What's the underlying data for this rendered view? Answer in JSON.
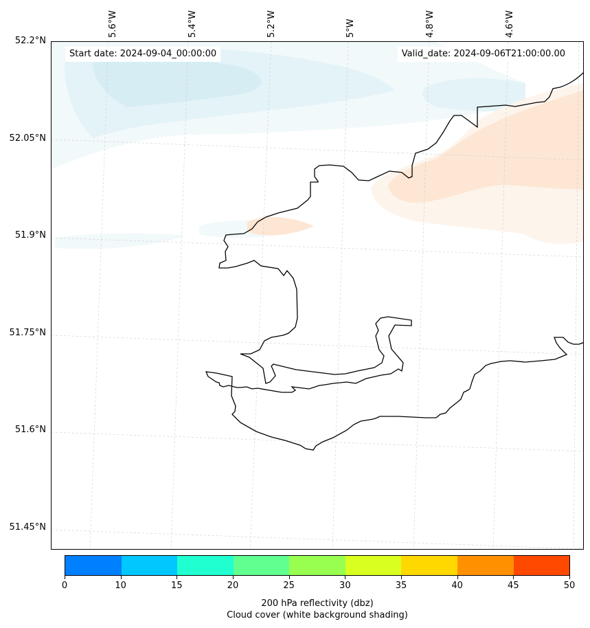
{
  "map": {
    "start_date": "Start date: 2024-09-04_00:00:00",
    "valid_date": "Valid_date: 2024-09-06T21:00:00.00",
    "longitude_labels": [
      "5.6°W",
      "5.4°W",
      "5.2°W",
      "5°W",
      "4.8°W",
      "4.6°W"
    ],
    "latitude_labels": [
      "52.2°N",
      "52.05°N",
      "51.9°N",
      "51.75°N",
      "51.6°N",
      "51.45°N"
    ]
  },
  "colorbar": {
    "ticks": [
      "0",
      "10",
      "15",
      "20",
      "25",
      "30",
      "35",
      "40",
      "45",
      "50"
    ],
    "colors": [
      "#0080ff",
      "#00c8ff",
      "#20ffd0",
      "#60ff90",
      "#98ff50",
      "#d8ff20",
      "#ffd800",
      "#ff9000",
      "#ff4800"
    ],
    "title_line1": "200 hPa reflectivity (dbz)",
    "title_line2": "Cloud cover (white background shading)"
  },
  "colors": {
    "cloud_light": "#f2f9fb",
    "cloud_mid": "#e4f3f7",
    "cloud_dark": "#d6edf3",
    "reflectivity_light": "#fdf4ec",
    "reflectivity_mid": "#fde6d3",
    "coastline": "#000000",
    "gridline": "#cccccc"
  }
}
